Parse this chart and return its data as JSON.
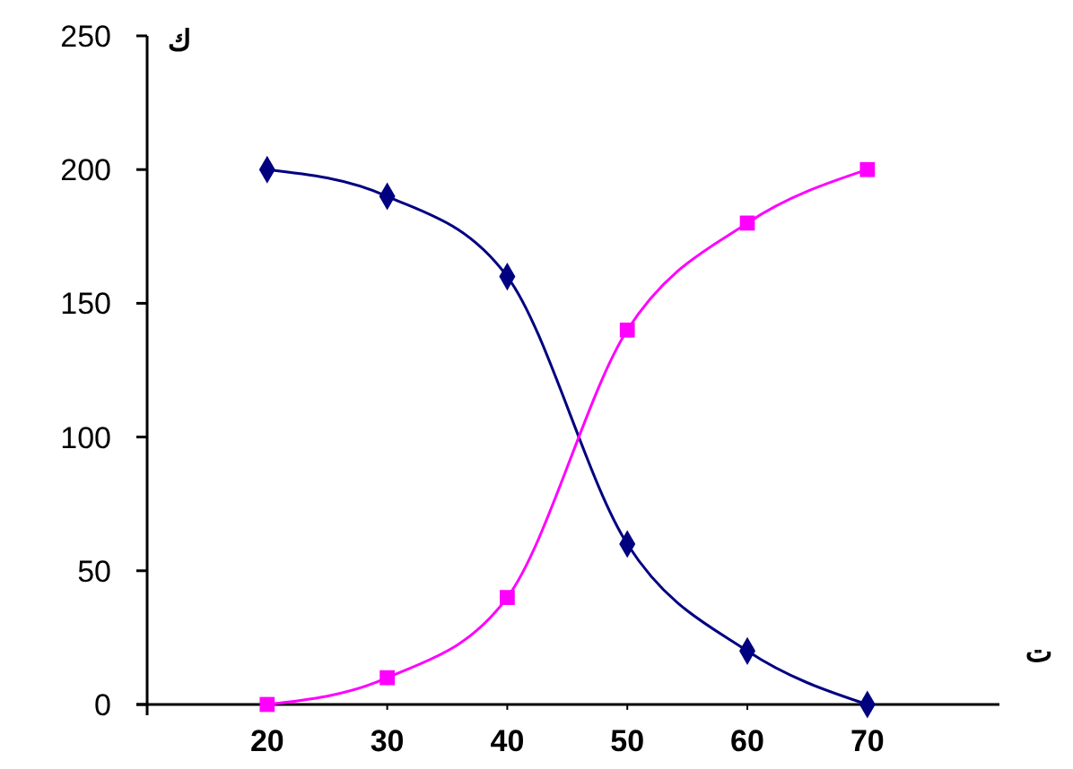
{
  "chart_data": {
    "type": "line",
    "xlabel": "ت",
    "ylabel": "ك",
    "x": [
      20,
      30,
      40,
      50,
      60,
      70
    ],
    "series": [
      {
        "color": "#000080",
        "values": [
          200,
          190,
          160,
          60,
          20,
          0
        ],
        "marker": "diamond"
      },
      {
        "color": "#ff00ff",
        "values": [
          0,
          10,
          40,
          140,
          180,
          200
        ],
        "marker": "square"
      }
    ],
    "xlim": [
      10,
      81
    ],
    "xticks": [
      20,
      30,
      40,
      50,
      60,
      70
    ],
    "ylim": [
      0,
      250
    ],
    "yticks": [
      0,
      50,
      100,
      150,
      200,
      250
    ]
  }
}
